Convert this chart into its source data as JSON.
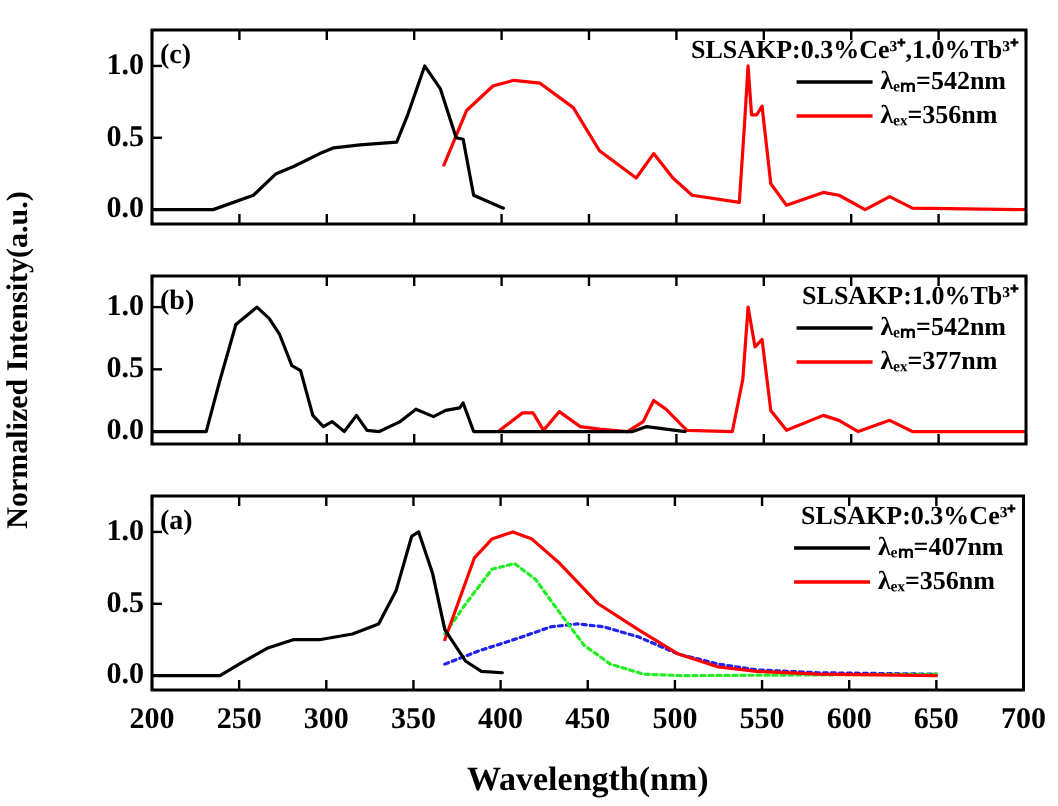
{
  "chart_data": [
    {
      "type": "line",
      "title": "SLSAKP:0.3%Ce³⁺,1.0%Tb³⁺",
      "annotations": [
        "(c)"
      ],
      "legend": "top right",
      "tick_labels": "y",
      "xlim": [
        200,
        700
      ],
      "xticks": [
        200,
        250,
        300,
        350,
        400,
        450,
        500,
        550,
        600,
        650,
        700
      ],
      "ylim": [
        -0.1,
        1.25
      ],
      "yticks": [
        {
          "value": 0,
          "label": "0.0"
        },
        {
          "value": 0.5,
          "label": "0.5"
        },
        {
          "value": 1,
          "label": "1.0"
        }
      ],
      "series": [
        {
          "name": "λₑₘ=542nm",
          "color": "#000000",
          "x": [
            200,
            235,
            258,
            271,
            281,
            296,
            304,
            319,
            340,
            346,
            356,
            365,
            374,
            378,
            384,
            401
          ],
          "values": [
            0,
            0,
            0.1,
            0.25,
            0.3,
            0.39,
            0.43,
            0.45,
            0.47,
            0.65,
            1.0,
            0.84,
            0.5,
            0.49,
            0.1,
            0.01
          ]
        },
        {
          "name": "λₑₓ=356nm",
          "color": "#ff0000",
          "x": [
            367,
            380,
            395,
            407,
            422,
            441,
            456,
            477,
            487,
            498,
            509,
            536,
            539,
            541,
            543,
            546,
            549,
            554,
            563,
            584,
            593,
            608,
            622,
            635,
            700
          ],
          "values": [
            0.31,
            0.69,
            0.86,
            0.9,
            0.88,
            0.71,
            0.41,
            0.22,
            0.39,
            0.22,
            0.1,
            0.05,
            0.6,
            1.0,
            0.66,
            0.66,
            0.72,
            0.18,
            0.03,
            0.12,
            0.1,
            0,
            0.09,
            0.01,
            0
          ]
        }
      ]
    },
    {
      "type": "line",
      "title": "SLSAKP:1.0%Tb³⁺",
      "annotations": [
        "(b)"
      ],
      "ylabel": "Normalized Intensity(a.u.)",
      "legend": "top right",
      "tick_labels": "y",
      "xlim": [
        200,
        700
      ],
      "xticks": [
        200,
        250,
        300,
        350,
        400,
        450,
        500,
        550,
        600,
        650,
        700
      ],
      "ylim": [
        -0.1,
        1.25
      ],
      "yticks": [
        {
          "value": 0,
          "label": "0.0"
        },
        {
          "value": 0.5,
          "label": "0.5"
        },
        {
          "value": 1,
          "label": "1.0"
        }
      ],
      "series": [
        {
          "name": "λₑₘ=542nm",
          "color": "#000000",
          "x": [
            200,
            231,
            239,
            248,
            260,
            267,
            273,
            280,
            285,
            292,
            298,
            303,
            310,
            317,
            323,
            330,
            342,
            351,
            361,
            368,
            376,
            378,
            384,
            401,
            475,
            483,
            505
          ],
          "values": [
            0,
            0,
            0.42,
            0.86,
            1.0,
            0.91,
            0.78,
            0.53,
            0.49,
            0.13,
            0.04,
            0.08,
            0,
            0.13,
            0.01,
            0,
            0.08,
            0.18,
            0.12,
            0.17,
            0.19,
            0.23,
            0,
            0,
            0,
            0.04,
            0
          ]
        },
        {
          "name": "λₑₓ=377nm",
          "color": "#ff0000",
          "x": [
            399,
            412,
            418,
            424,
            433,
            445,
            456,
            472,
            481,
            487,
            494,
            506,
            532,
            538,
            541,
            545,
            549,
            554,
            563,
            584,
            593,
            604,
            622,
            635,
            700
          ],
          "values": [
            0.01,
            0.15,
            0.15,
            0.01,
            0.16,
            0.04,
            0.02,
            0,
            0.08,
            0.25,
            0.18,
            0.01,
            0,
            0.42,
            1.0,
            0.68,
            0.74,
            0.17,
            0.01,
            0.13,
            0.09,
            0,
            0.09,
            0,
            0
          ]
        }
      ]
    },
    {
      "type": "line",
      "title": "SLSAKP:0.3%Ce³⁺",
      "annotations": [
        "(a)"
      ],
      "xlabel": "Wavelength(nm)",
      "legend": "top right",
      "xlim": [
        200,
        700
      ],
      "xticks": [
        200,
        250,
        300,
        350,
        400,
        450,
        500,
        550,
        600,
        650,
        700
      ],
      "ylim": [
        -0.1,
        1.25
      ],
      "yticks": [
        {
          "value": 0,
          "label": "0.0"
        },
        {
          "value": 0.5,
          "label": "0.5"
        },
        {
          "value": 1,
          "label": "1.0"
        }
      ],
      "series": [
        {
          "name": "λₑₘ=407nm",
          "color": "#000000",
          "x": [
            200,
            239,
            250,
            266,
            281,
            296,
            315,
            330,
            340,
            349,
            353,
            361,
            368,
            380,
            389,
            401
          ],
          "values": [
            0,
            0,
            0.08,
            0.19,
            0.25,
            0.25,
            0.29,
            0.36,
            0.59,
            0.97,
            1.0,
            0.71,
            0.32,
            0.1,
            0.03,
            0.02
          ]
        },
        {
          "name": "λₑₓ=356nm",
          "color": "#ff0000",
          "x": [
            368,
            385,
            395,
            407,
            418,
            434,
            456,
            479,
            502,
            525,
            547,
            582,
            650
          ],
          "values": [
            0.25,
            0.82,
            0.95,
            1.0,
            0.95,
            0.78,
            0.5,
            0.32,
            0.15,
            0.06,
            0.03,
            0.01,
            0
          ]
        },
        {
          "color": "#22ee22",
          "line_style": "dotted",
          "x": [
            368,
            380,
            395,
            408,
            420,
            435,
            448,
            463,
            482,
            505,
            650
          ],
          "values": [
            0.29,
            0.5,
            0.74,
            0.78,
            0.67,
            0.42,
            0.21,
            0.08,
            0.01,
            0,
            0.01
          ]
        },
        {
          "color": "#2222ee",
          "line_style": "dotted",
          "x": [
            368,
            387,
            410,
            429,
            444,
            459,
            479,
            502,
            525,
            547,
            582,
            650
          ],
          "values": [
            0.08,
            0.17,
            0.26,
            0.34,
            0.36,
            0.34,
            0.27,
            0.15,
            0.08,
            0.04,
            0.02,
            0.01
          ]
        }
      ]
    }
  ]
}
